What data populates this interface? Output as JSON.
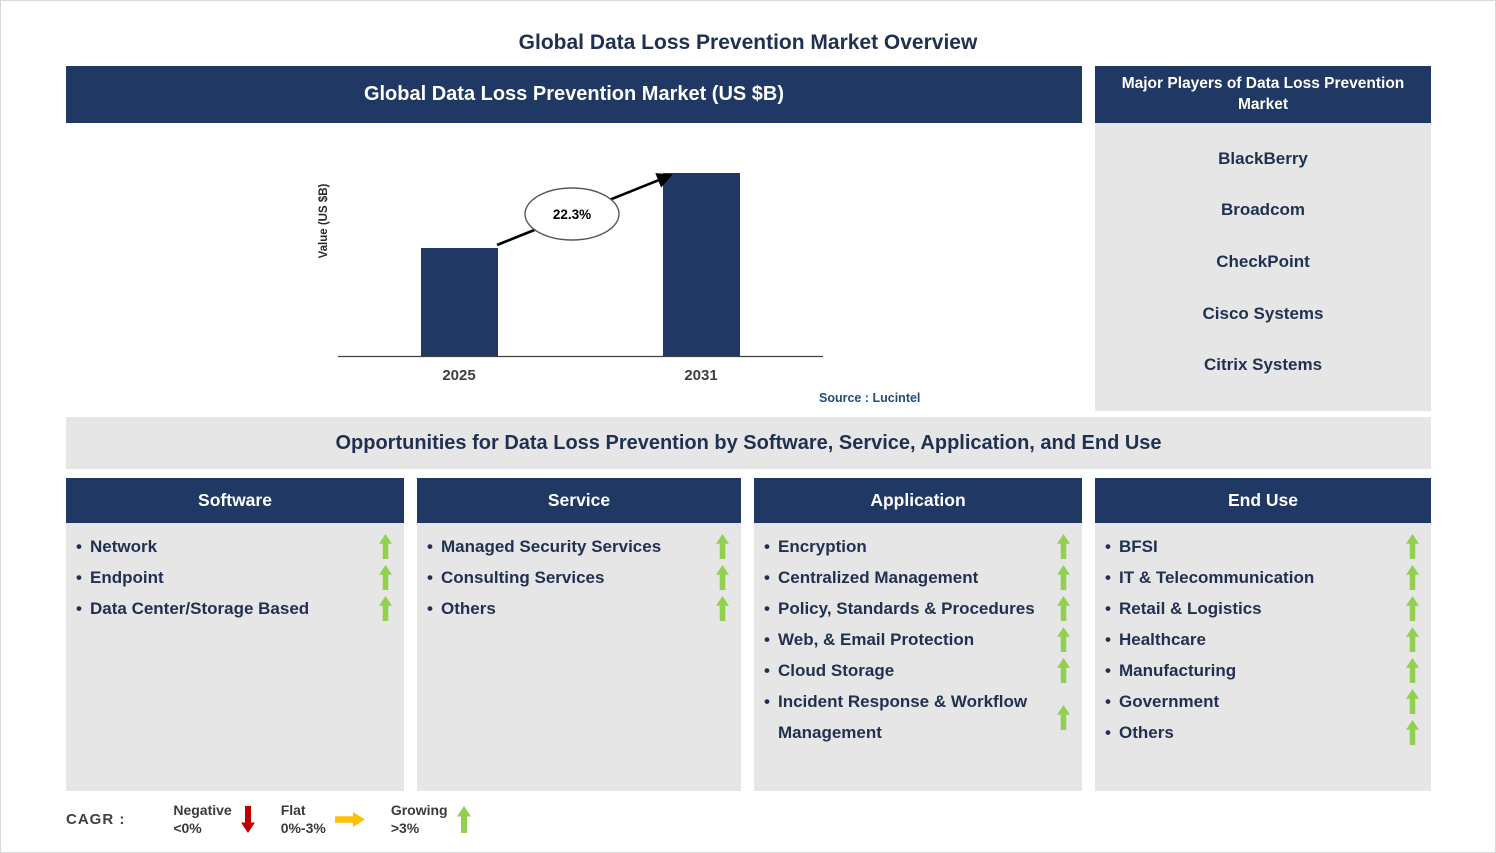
{
  "page": {
    "title": "Global Data Loss Prevention Market Overview"
  },
  "chart_panel": {
    "header": "Global Data Loss Prevention Market (US $B)",
    "source": "Source : Lucintel"
  },
  "chart_data": {
    "type": "bar",
    "title": "Global Data Loss Prevention Market (US $B)",
    "ylabel": "Value (US $B)",
    "categories": [
      "2025",
      "2031"
    ],
    "values": [
      1.0,
      1.7
    ],
    "value_scale": "relative bar heights; y-axis has no tick labels",
    "annotation": "22.3%",
    "annotation_meaning": "CAGR from 2025 to 2031",
    "bar_color": "#1F3864",
    "legend_position": "none",
    "grid": false
  },
  "major_players": {
    "header": "Major Players of Data Loss Prevention Market",
    "items": [
      "BlackBerry",
      "Broadcom",
      "CheckPoint",
      "Cisco Systems",
      "Citrix Systems"
    ]
  },
  "opportunities": {
    "header": "Opportunities for Data Loss Prevention by Software, Service, Application, and End Use",
    "columns": [
      {
        "header": "Software",
        "items": [
          {
            "label": "Network",
            "trend": "growing"
          },
          {
            "label": "Endpoint",
            "trend": "growing"
          },
          {
            "label": "Data Center/Storage Based",
            "trend": "growing"
          }
        ]
      },
      {
        "header": "Service",
        "items": [
          {
            "label": "Managed Security Services",
            "trend": "growing"
          },
          {
            "label": "Consulting Services",
            "trend": "growing"
          },
          {
            "label": "Others",
            "trend": "growing"
          }
        ]
      },
      {
        "header": "Application",
        "items": [
          {
            "label": "Encryption",
            "trend": "growing"
          },
          {
            "label": "Centralized Management",
            "trend": "growing"
          },
          {
            "label": "Policy, Standards & Procedures",
            "trend": "growing"
          },
          {
            "label": "Web, & Email Protection",
            "trend": "growing"
          },
          {
            "label": "Cloud Storage",
            "trend": "growing"
          },
          {
            "label": "Incident Response & Workflow Management",
            "trend": "growing"
          }
        ]
      },
      {
        "header": "End Use",
        "items": [
          {
            "label": "BFSI",
            "trend": "growing"
          },
          {
            "label": "IT & Telecommunication",
            "trend": "growing"
          },
          {
            "label": "Retail & Logistics",
            "trend": "growing"
          },
          {
            "label": "Healthcare",
            "trend": "growing"
          },
          {
            "label": "Manufacturing",
            "trend": "growing"
          },
          {
            "label": "Government",
            "trend": "growing"
          },
          {
            "label": "Others",
            "trend": "growing"
          }
        ]
      }
    ]
  },
  "legend": {
    "label": "CAGR  :",
    "items": [
      {
        "label": "Negative",
        "range": "<0%",
        "direction": "down",
        "color": "#C00000"
      },
      {
        "label": "Flat",
        "range": "0%-3%",
        "direction": "right",
        "color": "#FFC000"
      },
      {
        "label": "Growing",
        "range": ">3%",
        "direction": "up",
        "color": "#92D050"
      }
    ]
  },
  "colors": {
    "navy": "#1F3864",
    "panel_gray": "#E7E6E6",
    "growing_green": "#92D050",
    "negative_red": "#C00000",
    "flat_yellow": "#FFC000",
    "source_blue": "#1F4E79"
  }
}
